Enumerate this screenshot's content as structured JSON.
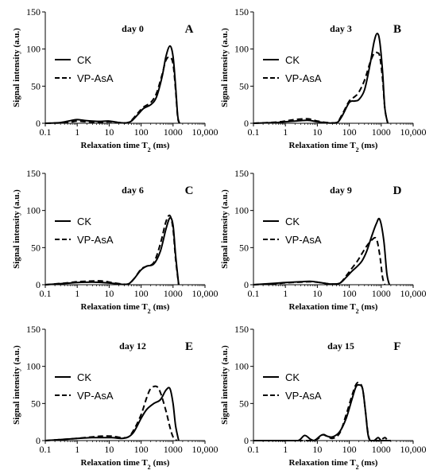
{
  "chart_data": [
    {
      "type": "line",
      "panel_letter": "A",
      "title": "day 0",
      "xlabel": "Relaxation time T",
      "xlabel_sub": "2",
      "xlabel_unit": "(ms)",
      "ylabel": "Signal intensity  (a.u.)",
      "x_scale": "log",
      "xlim": [
        0.1,
        10000
      ],
      "ylim": [
        0,
        150
      ],
      "x_ticks": [
        "0.1",
        "1",
        "10",
        "100",
        "1000",
        "10,000"
      ],
      "y_ticks": [
        "0",
        "50",
        "100",
        "150"
      ],
      "legend_position": "upper-left",
      "series": [
        {
          "name": "CK",
          "style": "solid",
          "x": [
            0.1,
            0.3,
            0.7,
            1,
            2,
            5,
            10,
            20,
            35,
            50,
            80,
            120,
            200,
            300,
            450,
            600,
            800,
            1000,
            1200,
            1400,
            1600
          ],
          "y": [
            0,
            1,
            4,
            5,
            3.5,
            2.5,
            3,
            1,
            0.5,
            3,
            12,
            20,
            25,
            35,
            62,
            90,
            104,
            90,
            50,
            10,
            0
          ]
        },
        {
          "name": "VP-AsA",
          "style": "dashed",
          "x": [
            0.1,
            0.3,
            0.7,
            1,
            2,
            5,
            10,
            20,
            35,
            50,
            80,
            120,
            200,
            300,
            450,
            600,
            800,
            1000,
            1200,
            1400,
            1600
          ],
          "y": [
            0,
            0.5,
            2,
            3,
            2,
            1.5,
            2,
            1,
            0.5,
            4,
            14,
            22,
            28,
            40,
            65,
            85,
            89,
            80,
            45,
            8,
            0
          ]
        }
      ]
    },
    {
      "type": "line",
      "panel_letter": "B",
      "title": "day 3",
      "xlabel": "Relaxation time T",
      "xlabel_sub": "2",
      "xlabel_unit": "(ms)",
      "ylabel": "Signal intensity  (a.u.)",
      "x_scale": "log",
      "xlim": [
        0.1,
        10000
      ],
      "ylim": [
        0,
        150
      ],
      "x_ticks": [
        "0.1",
        "1",
        "10",
        "100",
        "1000",
        "10,000"
      ],
      "y_ticks": [
        "0",
        "50",
        "100",
        "150"
      ],
      "legend_position": "upper-left",
      "series": [
        {
          "name": "CK",
          "style": "solid",
          "x": [
            0.1,
            0.5,
            1,
            2,
            5,
            10,
            20,
            40,
            60,
            100,
            150,
            200,
            300,
            450,
            600,
            750,
            900,
            1100,
            1300,
            1600
          ],
          "y": [
            0,
            1,
            2,
            3,
            4,
            2,
            0.5,
            0.5,
            10,
            28,
            30,
            32,
            45,
            80,
            110,
            121,
            110,
            70,
            20,
            0
          ]
        },
        {
          "name": "VP-AsA",
          "style": "dashed",
          "x": [
            0.1,
            0.5,
            1,
            2,
            5,
            10,
            20,
            40,
            60,
            100,
            150,
            200,
            300,
            450,
            600,
            750,
            900,
            1100,
            1300,
            1600
          ],
          "y": [
            0,
            1.5,
            3,
            5,
            6,
            3,
            1,
            1,
            12,
            30,
            36,
            42,
            58,
            82,
            94,
            95,
            90,
            60,
            20,
            0
          ]
        }
      ]
    },
    {
      "type": "line",
      "panel_letter": "C",
      "title": "day 6",
      "xlabel": "Relaxation time T",
      "xlabel_sub": "2",
      "xlabel_unit": "(ms)",
      "ylabel": "Signal intensity  (a.u.)",
      "x_scale": "log",
      "xlim": [
        0.1,
        10000
      ],
      "ylim": [
        0,
        150
      ],
      "x_ticks": [
        "0.1",
        "1",
        "10",
        "100",
        "1000",
        "10,000"
      ],
      "y_ticks": [
        "0",
        "50",
        "100",
        "150"
      ],
      "legend_position": "upper-left",
      "series": [
        {
          "name": "CK",
          "style": "solid",
          "x": [
            0.1,
            0.5,
            1,
            3,
            6,
            12,
            25,
            40,
            60,
            100,
            150,
            250,
            400,
            600,
            800,
            1000,
            1200,
            1500
          ],
          "y": [
            0,
            2,
            3,
            3.5,
            3,
            2,
            0.5,
            1,
            8,
            20,
            25,
            28,
            45,
            75,
            90,
            80,
            40,
            0
          ]
        },
        {
          "name": "VP-AsA",
          "style": "dashed",
          "x": [
            0.1,
            0.5,
            1,
            3,
            6,
            12,
            25,
            40,
            60,
            100,
            150,
            250,
            400,
            600,
            800,
            1000,
            1200,
            1500
          ],
          "y": [
            0,
            2.5,
            4,
            5,
            5,
            3,
            1,
            1,
            8,
            21,
            25,
            30,
            55,
            85,
            93,
            75,
            35,
            0
          ]
        }
      ]
    },
    {
      "type": "line",
      "panel_letter": "D",
      "title": "day 9",
      "xlabel": "Relaxation time T",
      "xlabel_sub": "2",
      "xlabel_unit": "(ms)",
      "ylabel": "Signal intensity  (a.u.)",
      "x_scale": "log",
      "xlim": [
        0.1,
        10000
      ],
      "ylim": [
        0,
        150
      ],
      "x_ticks": [
        "0.1",
        "1",
        "10",
        "100",
        "1000",
        "10,000"
      ],
      "y_ticks": [
        "0",
        "50",
        "100",
        "150"
      ],
      "legend_position": "upper-left",
      "series": [
        {
          "name": "CK",
          "style": "solid",
          "x": [
            0.1,
            0.5,
            1,
            3,
            6,
            12,
            25,
            50,
            80,
            120,
            180,
            250,
            350,
            500,
            700,
            900,
            1200,
            1500,
            1800
          ],
          "y": [
            0,
            2,
            3,
            4,
            4.5,
            3,
            1,
            2,
            10,
            18,
            25,
            32,
            45,
            65,
            82,
            88,
            60,
            15,
            0
          ]
        },
        {
          "name": "VP-AsA",
          "style": "dashed",
          "x": [
            0.1,
            0.5,
            1,
            3,
            6,
            12,
            25,
            50,
            80,
            120,
            180,
            250,
            350,
            500,
            700,
            900,
            1100,
            1300
          ],
          "y": [
            0,
            1.5,
            2.5,
            3.5,
            4,
            3,
            1,
            2,
            12,
            22,
            32,
            42,
            52,
            60,
            62,
            40,
            10,
            0
          ]
        }
      ]
    },
    {
      "type": "line",
      "panel_letter": "E",
      "title": "day 12",
      "xlabel": "Relaxation time T",
      "xlabel_sub": "2",
      "xlabel_unit": "(ms)",
      "ylabel": "Signal intensity  (a.u.)",
      "x_scale": "log",
      "xlim": [
        0.1,
        10000
      ],
      "ylim": [
        0,
        150
      ],
      "x_ticks": [
        "0.1",
        "1",
        "10",
        "100",
        "1000",
        "10,000"
      ],
      "y_ticks": [
        "0",
        "50",
        "100",
        "150"
      ],
      "legend_position": "upper-left",
      "series": [
        {
          "name": "CK",
          "style": "solid",
          "x": [
            0.1,
            0.5,
            1,
            3,
            6,
            12,
            25,
            40,
            60,
            100,
            150,
            250,
            400,
            600,
            800,
            1000,
            1200,
            1500
          ],
          "y": [
            0,
            2,
            3,
            4,
            4,
            4,
            3,
            5,
            12,
            30,
            42,
            50,
            55,
            68,
            70,
            50,
            20,
            0
          ]
        },
        {
          "name": "VP-AsA",
          "style": "dashed",
          "x": [
            0.1,
            0.5,
            1,
            3,
            6,
            12,
            25,
            40,
            60,
            100,
            150,
            200,
            300,
            400,
            600,
            800,
            1000,
            1300
          ],
          "y": [
            0,
            2,
            3,
            5,
            6,
            6,
            4,
            5,
            15,
            35,
            58,
            70,
            73,
            65,
            40,
            18,
            5,
            0
          ]
        }
      ]
    },
    {
      "type": "line",
      "panel_letter": "F",
      "title": "day 15",
      "xlabel": "Relaxation time T",
      "xlabel_sub": "2",
      "xlabel_unit": "(ms)",
      "ylabel": "Signal intensity  (a.u.)",
      "x_scale": "log",
      "xlim": [
        0.1,
        10000
      ],
      "ylim": [
        0,
        150
      ],
      "x_ticks": [
        "0.1",
        "1",
        "10",
        "100",
        "1000",
        "10,000"
      ],
      "y_ticks": [
        "0",
        "50",
        "100",
        "150"
      ],
      "legend_position": "upper-left",
      "series": [
        {
          "name": "CK",
          "style": "solid",
          "x": [
            0.1,
            1,
            2.5,
            4,
            6,
            8,
            12,
            15,
            20,
            30,
            50,
            80,
            120,
            160,
            200,
            260,
            320,
            380,
            450,
            600,
            800,
            1000,
            1300,
            1600,
            2000
          ],
          "y": [
            0,
            0,
            0,
            7,
            2,
            0,
            6,
            8,
            6,
            5,
            12,
            30,
            55,
            72,
            75,
            70,
            40,
            10,
            0,
            0,
            4,
            0,
            0,
            0,
            0
          ]
        },
        {
          "name": "VP-AsA",
          "style": "dashed",
          "x": [
            0.1,
            1,
            3,
            6,
            10,
            15,
            20,
            30,
            50,
            80,
            120,
            160,
            200,
            260,
            320,
            380,
            450,
            600,
            900,
            1300,
            1600,
            2000
          ],
          "y": [
            0,
            0,
            0,
            0,
            2,
            8,
            6,
            3,
            10,
            35,
            60,
            75,
            78,
            70,
            40,
            12,
            0,
            0,
            0,
            4,
            0,
            0
          ]
        }
      ]
    }
  ]
}
